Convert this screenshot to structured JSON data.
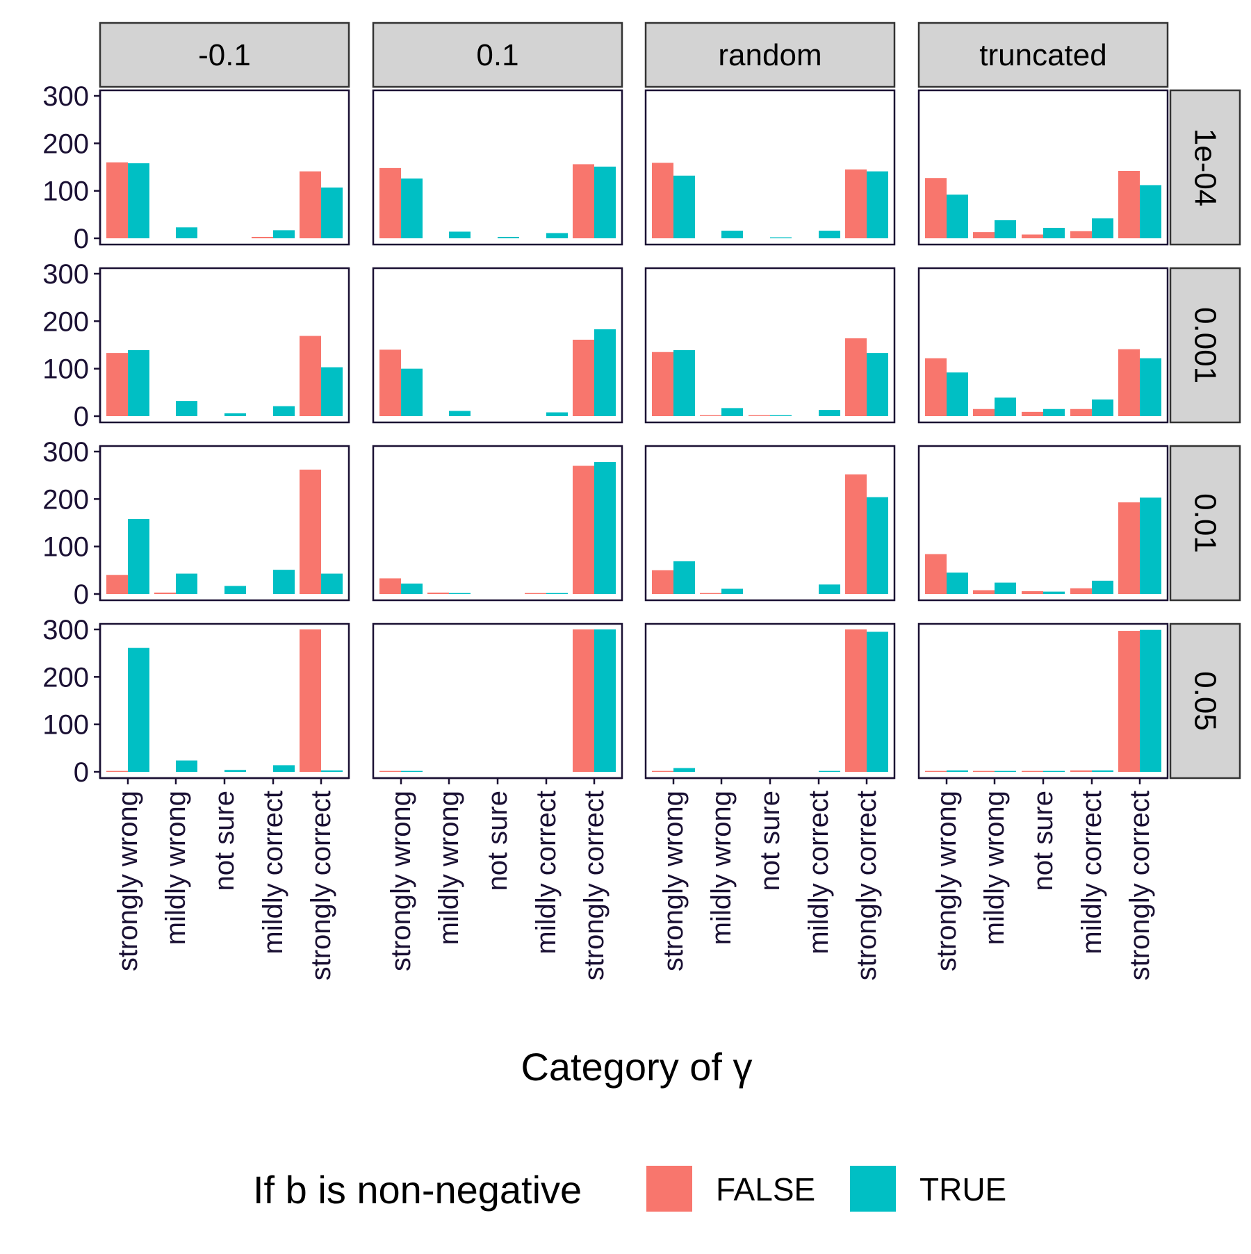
{
  "chart_data": {
    "type": "bar",
    "facet_columns": [
      "-0.1",
      "0.1",
      "random",
      "truncated"
    ],
    "facet_rows": [
      "1e-04",
      "0.001",
      "0.01",
      "0.05"
    ],
    "categories": [
      "strongly wrong",
      "mildly wrong",
      "not sure",
      "mildly correct",
      "strongly correct"
    ],
    "xlabel": "Category of γ",
    "ylabel": "",
    "ylim": [
      0,
      300
    ],
    "yticks": [
      0,
      100,
      200,
      300
    ],
    "legend": {
      "title": "If b is non-negative",
      "position": "bottom",
      "entries": [
        {
          "name": "FALSE",
          "color": "#F8766D"
        },
        {
          "name": "TRUE",
          "color": "#00BFC4"
        }
      ]
    },
    "series_colors": {
      "FALSE": "#F8766D",
      "TRUE": "#00BFC4"
    },
    "panels": [
      {
        "col": "-0.1",
        "row": "1e-04",
        "FALSE": [
          160,
          0,
          0,
          3,
          141
        ],
        "TRUE": [
          158,
          23,
          0,
          17,
          107
        ]
      },
      {
        "col": "0.1",
        "row": "1e-04",
        "FALSE": [
          148,
          0,
          0,
          0,
          156
        ],
        "TRUE": [
          126,
          14,
          3,
          11,
          151
        ]
      },
      {
        "col": "random",
        "row": "1e-04",
        "FALSE": [
          159,
          0,
          0,
          0,
          145
        ],
        "TRUE": [
          132,
          16,
          2,
          16,
          141
        ]
      },
      {
        "col": "truncated",
        "row": "1e-04",
        "FALSE": [
          127,
          13,
          8,
          15,
          142
        ],
        "TRUE": [
          92,
          38,
          22,
          42,
          112
        ]
      },
      {
        "col": "-0.1",
        "row": "0.001",
        "FALSE": [
          133,
          0,
          0,
          0,
          169
        ],
        "TRUE": [
          139,
          32,
          6,
          21,
          103
        ]
      },
      {
        "col": "0.1",
        "row": "0.001",
        "FALSE": [
          140,
          0,
          0,
          0,
          161
        ],
        "TRUE": [
          100,
          11,
          0,
          8,
          183
        ]
      },
      {
        "col": "random",
        "row": "0.001",
        "FALSE": [
          135,
          2,
          2,
          0,
          164
        ],
        "TRUE": [
          139,
          17,
          2,
          13,
          133
        ]
      },
      {
        "col": "truncated",
        "row": "0.001",
        "FALSE": [
          122,
          15,
          9,
          15,
          141
        ],
        "TRUE": [
          92,
          39,
          15,
          35,
          122
        ]
      },
      {
        "col": "-0.1",
        "row": "0.01",
        "FALSE": [
          40,
          3,
          0,
          0,
          262
        ],
        "TRUE": [
          158,
          43,
          17,
          51,
          43
        ]
      },
      {
        "col": "0.1",
        "row": "0.01",
        "FALSE": [
          33,
          3,
          0,
          2,
          270
        ],
        "TRUE": [
          22,
          2,
          0,
          2,
          278
        ]
      },
      {
        "col": "random",
        "row": "0.01",
        "FALSE": [
          50,
          2,
          0,
          0,
          252
        ],
        "TRUE": [
          69,
          11,
          0,
          20,
          204
        ]
      },
      {
        "col": "truncated",
        "row": "0.01",
        "FALSE": [
          84,
          8,
          6,
          12,
          193
        ],
        "TRUE": [
          45,
          24,
          5,
          28,
          203
        ]
      },
      {
        "col": "-0.1",
        "row": "0.05",
        "FALSE": [
          2,
          0,
          0,
          0,
          302
        ],
        "TRUE": [
          261,
          24,
          4,
          14,
          3
        ]
      },
      {
        "col": "0.1",
        "row": "0.05",
        "FALSE": [
          2,
          0,
          0,
          0,
          302
        ],
        "TRUE": [
          2,
          0,
          0,
          0,
          302
        ]
      },
      {
        "col": "random",
        "row": "0.05",
        "FALSE": [
          2,
          0,
          0,
          0,
          302
        ],
        "TRUE": [
          8,
          0,
          0,
          2,
          295
        ]
      },
      {
        "col": "truncated",
        "row": "0.05",
        "FALSE": [
          2,
          2,
          2,
          3,
          297
        ],
        "TRUE": [
          3,
          2,
          2,
          3,
          299
        ]
      }
    ]
  }
}
